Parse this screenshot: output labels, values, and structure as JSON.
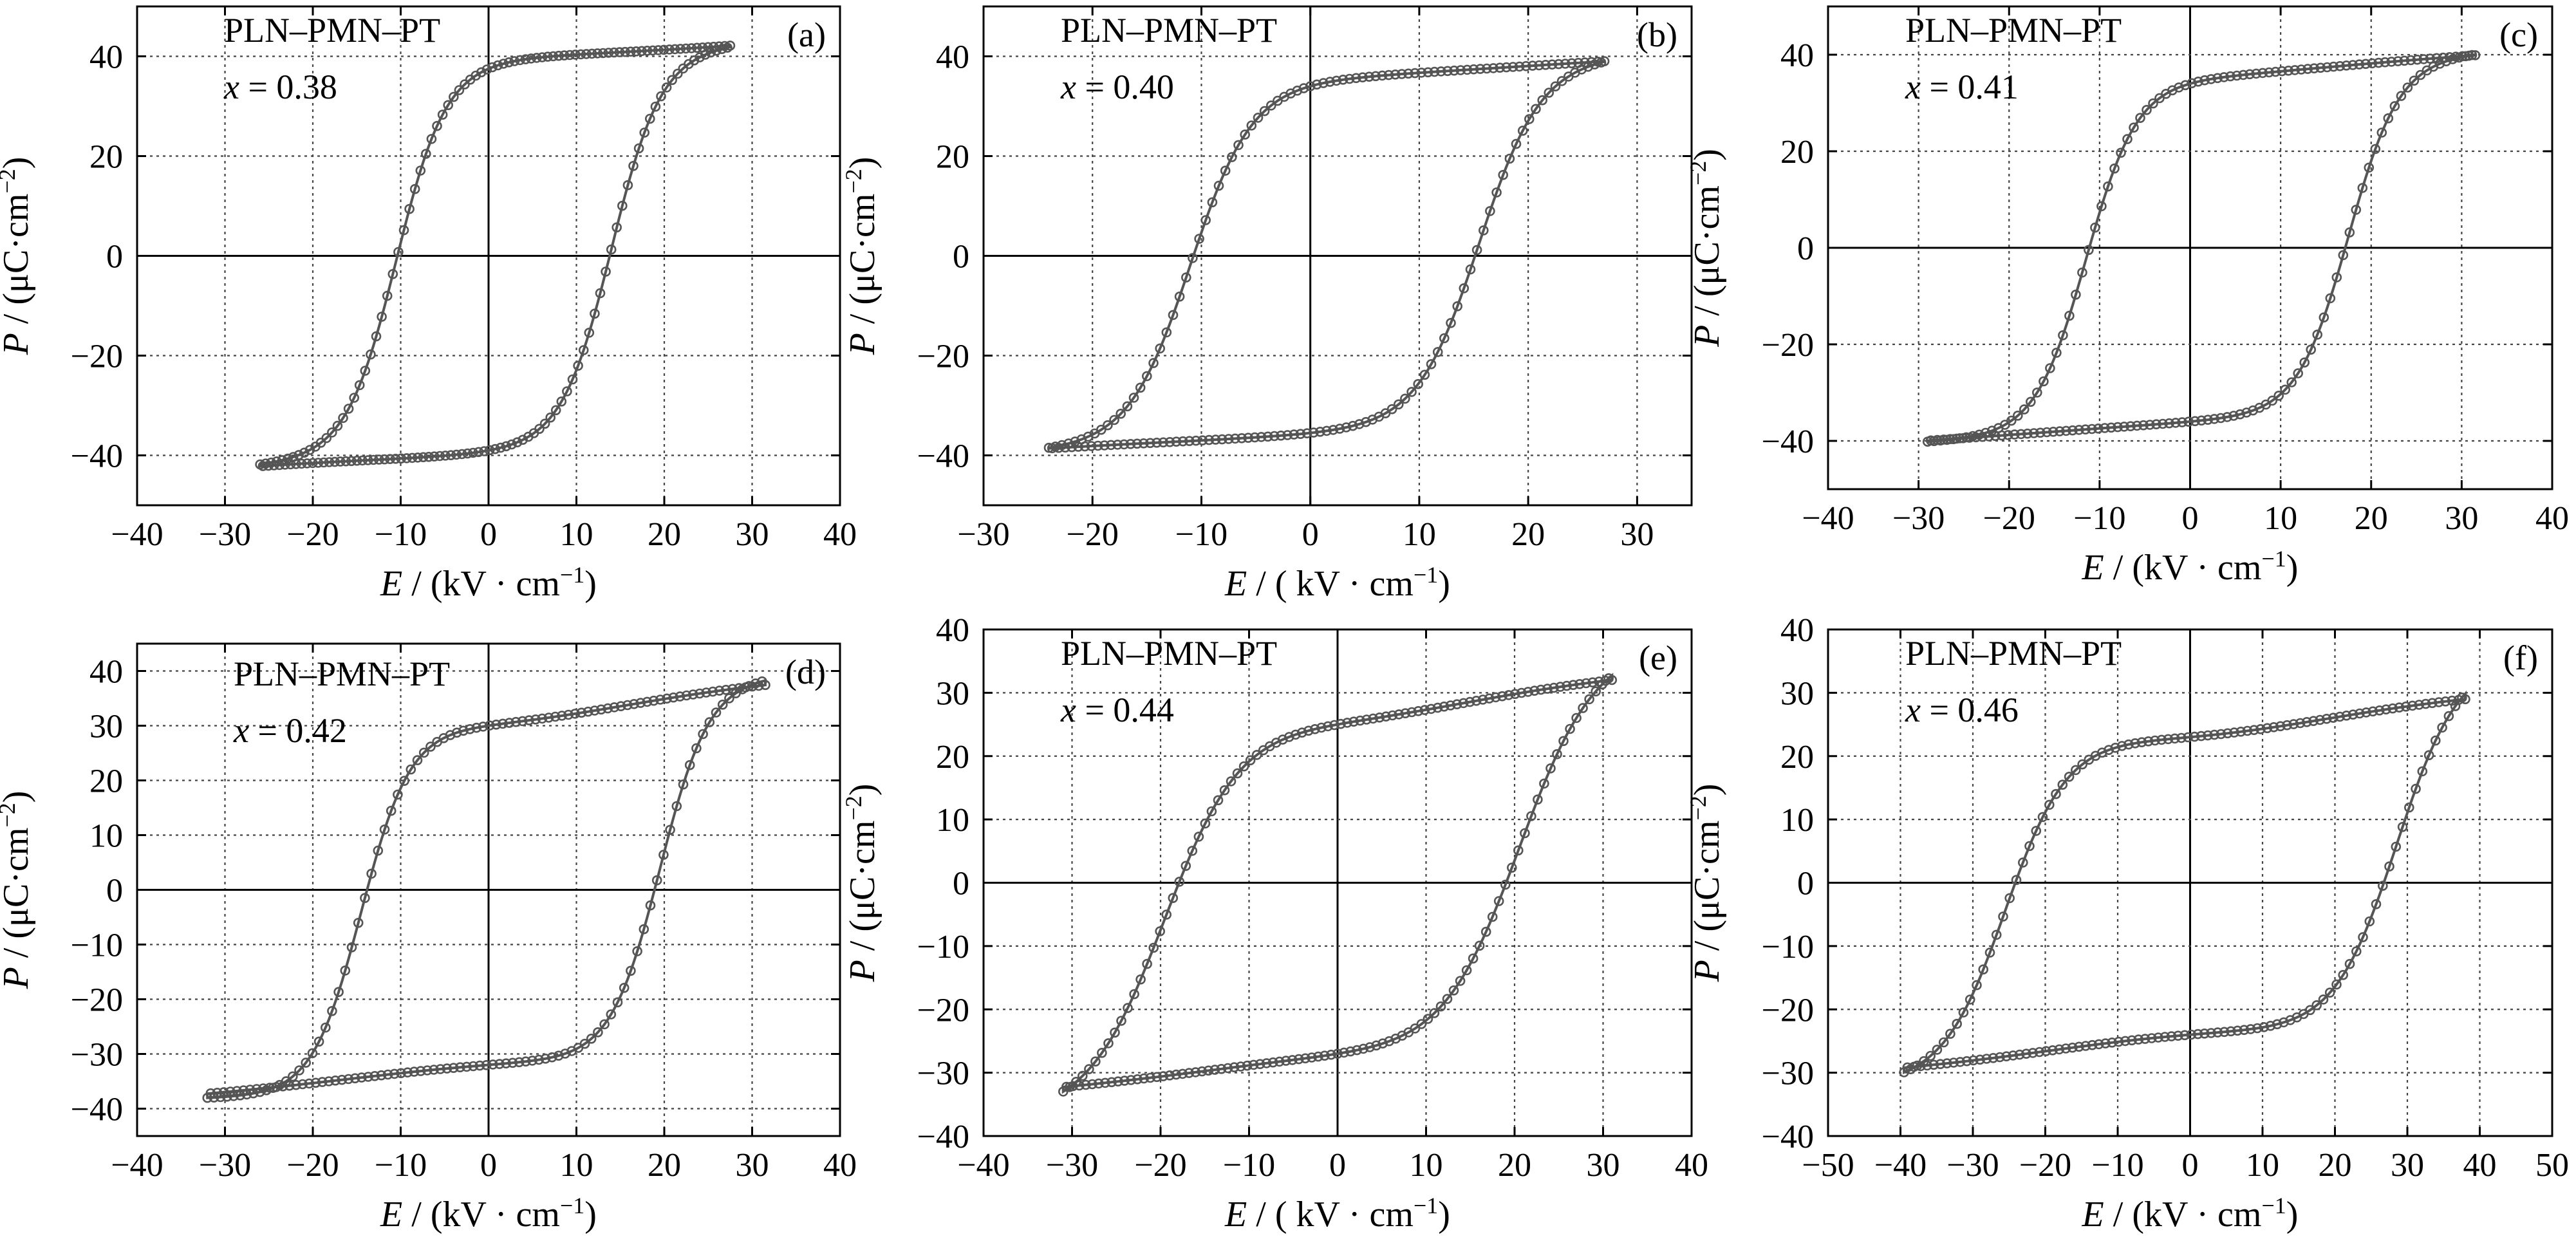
{
  "figure": {
    "marker_color": "#555555",
    "panels": [
      {
        "id": "a",
        "letter": "(a)",
        "composition": "PLN–PMN–PT",
        "x_symbol": "x",
        "x_value": "= 0.38",
        "xlabel_var": "E",
        "xlabel_unit": " / (kV · cm",
        "xlabel_exp": "−1",
        "xlabel_close": ")",
        "ylabel_var": "P",
        "ylabel_unit": " / (μC·cm",
        "ylabel_exp": "−2",
        "ylabel_close": ")"
      },
      {
        "id": "b",
        "letter": "(b)",
        "composition": "PLN–PMN–PT",
        "x_symbol": "x",
        "x_value": "= 0.40",
        "xlabel_var": "E",
        "xlabel_unit": " / ( kV · cm",
        "xlabel_exp": "−1",
        "xlabel_close": ")",
        "ylabel_var": "P",
        "ylabel_unit": " / (μC·cm",
        "ylabel_exp": "−2",
        "ylabel_close": ")"
      },
      {
        "id": "c",
        "letter": "(c)",
        "composition": "PLN–PMN–PT",
        "x_symbol": "x",
        "x_value": "= 0.41",
        "xlabel_var": "E",
        "xlabel_unit": " / (kV · cm",
        "xlabel_exp": "−1",
        "xlabel_close": ")",
        "ylabel_var": "P",
        "ylabel_unit": " / (μC·cm",
        "ylabel_exp": "−2",
        "ylabel_close": ")"
      },
      {
        "id": "d",
        "letter": "(d)",
        "composition": "PLN–PMN–PT",
        "x_symbol": "x",
        "x_value": "= 0.42",
        "xlabel_var": "E",
        "xlabel_unit": " / (kV · cm",
        "xlabel_exp": "−1",
        "xlabel_close": ")",
        "ylabel_var": "P",
        "ylabel_unit": " / (μC·cm",
        "ylabel_exp": "−2",
        "ylabel_close": ")"
      },
      {
        "id": "e",
        "letter": "(e)",
        "composition": "PLN–PMN–PT",
        "x_symbol": "x",
        "x_value": "= 0.44",
        "xlabel_var": "E",
        "xlabel_unit": " / ( kV · cm",
        "xlabel_exp": "−1",
        "xlabel_close": ")",
        "ylabel_var": "P",
        "ylabel_unit": " / (μC·cm",
        "ylabel_exp": "−2",
        "ylabel_close": ")"
      },
      {
        "id": "f",
        "letter": "(f)",
        "composition": "PLN–PMN–PT",
        "x_symbol": "x",
        "x_value": "= 0.46",
        "xlabel_var": "E",
        "xlabel_unit": " / (kV · cm",
        "xlabel_exp": "−1",
        "xlabel_close": ")",
        "ylabel_var": "P",
        "ylabel_unit": " / (μC·cm",
        "ylabel_exp": "−2",
        "ylabel_close": ")"
      }
    ]
  },
  "chart_data": [
    {
      "type": "scatter",
      "panel": "a",
      "xlim": [
        -40,
        40
      ],
      "ylim": [
        -50,
        50
      ],
      "xticks": [
        -40,
        -30,
        -20,
        -10,
        0,
        10,
        20,
        30,
        40
      ],
      "yticks": [
        -40,
        -20,
        0,
        20,
        40
      ],
      "grid": true,
      "loop": {
        "E_max": 27.5,
        "P_max": 42,
        "E_min": -26,
        "P_min": -42,
        "Ec_pos": 14,
        "Ec_neg": -10.5,
        "Pr_pos": 37.5,
        "Pr_neg": -39,
        "sharpness": 0.5
      }
    },
    {
      "type": "scatter",
      "panel": "b",
      "xlim": [
        -30,
        35
      ],
      "ylim": [
        -50,
        50
      ],
      "xticks": [
        -30,
        -20,
        -10,
        0,
        10,
        20,
        30
      ],
      "yticks": [
        -40,
        -20,
        0,
        20,
        40
      ],
      "grid": true,
      "loop": {
        "E_max": 27,
        "P_max": 39,
        "E_min": -24,
        "P_min": -38.5,
        "Ec_pos": 15.5,
        "Ec_neg": -11,
        "Pr_pos": 34,
        "Pr_neg": -35.5,
        "sharpness": 0.5
      }
    },
    {
      "type": "scatter",
      "panel": "c",
      "xlim": [
        -40,
        40
      ],
      "ylim": [
        -50,
        50
      ],
      "xticks": [
        -40,
        -30,
        -20,
        -10,
        0,
        10,
        20,
        30,
        40
      ],
      "yticks": [
        -40,
        -20,
        0,
        20,
        40
      ],
      "grid": true,
      "loop": {
        "E_max": 31.5,
        "P_max": 40,
        "E_min": -29,
        "P_min": -40,
        "Ec_pos": 17.5,
        "Ec_neg": -11.5,
        "Pr_pos": 34,
        "Pr_neg": -36,
        "sharpness": 0.5
      }
    },
    {
      "type": "scatter",
      "panel": "d",
      "xlim": [
        -40,
        40
      ],
      "ylim": [
        -45,
        45
      ],
      "xticks": [
        -40,
        -30,
        -20,
        -10,
        0,
        10,
        20,
        30,
        40
      ],
      "yticks": [
        -40,
        -30,
        -20,
        -10,
        0,
        10,
        20,
        30,
        40
      ],
      "grid": true,
      "loop": {
        "E_max": 31.5,
        "P_max": 38,
        "E_min": -32,
        "P_min": -37.5,
        "Ec_pos": 19.5,
        "Ec_neg": -14.5,
        "Pr_pos": 30,
        "Pr_neg": -32,
        "sharpness": 0.5
      }
    },
    {
      "type": "scatter",
      "panel": "e",
      "xlim": [
        -40,
        40
      ],
      "ylim": [
        -40,
        40
      ],
      "xticks": [
        -40,
        -30,
        -20,
        -10,
        0,
        10,
        20,
        30,
        40
      ],
      "yticks": [
        -40,
        -30,
        -20,
        -10,
        0,
        10,
        20,
        30,
        40
      ],
      "grid": true,
      "loop": {
        "E_max": 31,
        "P_max": 32.5,
        "E_min": -31,
        "P_min": -32.5,
        "Ec_pos": 20.5,
        "Ec_neg": -19.5,
        "Pr_pos": 25,
        "Pr_neg": -27,
        "sharpness": 1.0
      }
    },
    {
      "type": "scatter",
      "panel": "f",
      "xlim": [
        -50,
        50
      ],
      "ylim": [
        -40,
        40
      ],
      "xticks": [
        -50,
        -40,
        -30,
        -20,
        -10,
        0,
        10,
        20,
        30,
        40,
        50
      ],
      "yticks": [
        -40,
        -30,
        -20,
        -10,
        0,
        10,
        20,
        30,
        40
      ],
      "grid": true,
      "loop": {
        "E_max": 38,
        "P_max": 29.5,
        "E_min": -39.5,
        "P_min": -29.5,
        "Ec_pos": 28.5,
        "Ec_neg": -25.5,
        "Pr_pos": 23,
        "Pr_neg": -24,
        "sharpness": 1.0
      }
    }
  ]
}
